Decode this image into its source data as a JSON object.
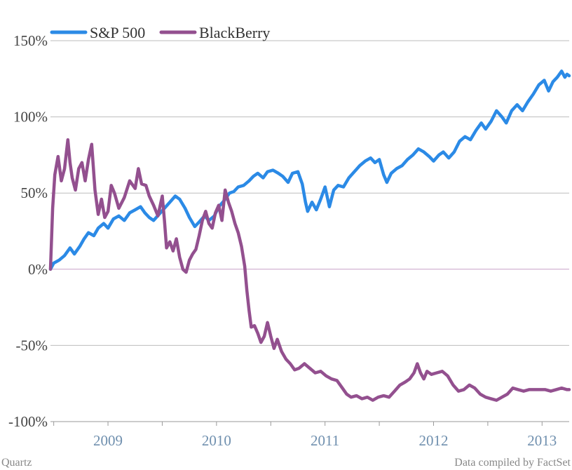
{
  "chart_data": {
    "type": "line",
    "y_unit": "%",
    "ylim": [
      -100,
      150
    ],
    "yticks": [
      {
        "value": 150,
        "label": "150%"
      },
      {
        "value": 100,
        "label": "100%"
      },
      {
        "value": 50,
        "label": "50%"
      },
      {
        "value": 0,
        "label": "0%"
      },
      {
        "value": -50,
        "label": "-50%"
      },
      {
        "value": -100,
        "label": "-100%"
      }
    ],
    "xlim": [
      2008.97,
      2013.75
    ],
    "xticks": [
      {
        "value": 2009.5,
        "label": "2009"
      },
      {
        "value": 2010.5,
        "label": "2010"
      },
      {
        "value": 2011.5,
        "label": "2011"
      },
      {
        "value": 2012.5,
        "label": "2012"
      },
      {
        "value": 2013.5,
        "label": "2013"
      }
    ],
    "x_minor_ticks": [
      2009.0,
      2009.5,
      2010.0,
      2010.5,
      2011.0,
      2011.5,
      2012.0,
      2012.5,
      2013.0,
      2013.5
    ],
    "grid": true,
    "legend_position": "top-left",
    "series": [
      {
        "name": "S&P 500",
        "color": "#2b8ae6",
        "points": [
          [
            2008.97,
            0
          ],
          [
            2009.0,
            4
          ],
          [
            2009.05,
            6
          ],
          [
            2009.1,
            9
          ],
          [
            2009.15,
            14
          ],
          [
            2009.19,
            10
          ],
          [
            2009.24,
            15
          ],
          [
            2009.28,
            20
          ],
          [
            2009.32,
            24
          ],
          [
            2009.37,
            22
          ],
          [
            2009.41,
            27
          ],
          [
            2009.46,
            30
          ],
          [
            2009.5,
            27
          ],
          [
            2009.55,
            33
          ],
          [
            2009.6,
            35
          ],
          [
            2009.65,
            32
          ],
          [
            2009.7,
            37
          ],
          [
            2009.75,
            39
          ],
          [
            2009.8,
            41
          ],
          [
            2009.84,
            37
          ],
          [
            2009.88,
            34
          ],
          [
            2009.92,
            32
          ],
          [
            2009.97,
            36
          ],
          [
            2010.02,
            40
          ],
          [
            2010.07,
            44
          ],
          [
            2010.12,
            48
          ],
          [
            2010.16,
            46
          ],
          [
            2010.21,
            40
          ],
          [
            2010.25,
            34
          ],
          [
            2010.3,
            28
          ],
          [
            2010.34,
            31
          ],
          [
            2010.39,
            35
          ],
          [
            2010.43,
            32
          ],
          [
            2010.48,
            35
          ],
          [
            2010.52,
            41
          ],
          [
            2010.57,
            45
          ],
          [
            2010.62,
            50
          ],
          [
            2010.66,
            51
          ],
          [
            2010.7,
            54
          ],
          [
            2010.75,
            55
          ],
          [
            2010.8,
            58
          ],
          [
            2010.84,
            61
          ],
          [
            2010.88,
            63
          ],
          [
            2010.93,
            60
          ],
          [
            2010.97,
            64
          ],
          [
            2011.02,
            65
          ],
          [
            2011.07,
            63
          ],
          [
            2011.11,
            61
          ],
          [
            2011.16,
            57
          ],
          [
            2011.2,
            63
          ],
          [
            2011.25,
            64
          ],
          [
            2011.29,
            56
          ],
          [
            2011.32,
            44
          ],
          [
            2011.34,
            38
          ],
          [
            2011.38,
            44
          ],
          [
            2011.42,
            39
          ],
          [
            2011.46,
            46
          ],
          [
            2011.5,
            54
          ],
          [
            2011.54,
            41
          ],
          [
            2011.58,
            52
          ],
          [
            2011.62,
            55
          ],
          [
            2011.67,
            54
          ],
          [
            2011.72,
            60
          ],
          [
            2011.77,
            64
          ],
          [
            2011.82,
            68
          ],
          [
            2011.87,
            71
          ],
          [
            2011.92,
            73
          ],
          [
            2011.96,
            70
          ],
          [
            2012.0,
            72
          ],
          [
            2012.04,
            62
          ],
          [
            2012.07,
            57
          ],
          [
            2012.11,
            63
          ],
          [
            2012.16,
            66
          ],
          [
            2012.21,
            68
          ],
          [
            2012.26,
            72
          ],
          [
            2012.31,
            75
          ],
          [
            2012.36,
            79
          ],
          [
            2012.41,
            77
          ],
          [
            2012.46,
            74
          ],
          [
            2012.5,
            71
          ],
          [
            2012.55,
            75
          ],
          [
            2012.59,
            77
          ],
          [
            2012.64,
            73
          ],
          [
            2012.69,
            77
          ],
          [
            2012.74,
            84
          ],
          [
            2012.79,
            87
          ],
          [
            2012.84,
            85
          ],
          [
            2012.89,
            91
          ],
          [
            2012.94,
            96
          ],
          [
            2012.98,
            92
          ],
          [
            2013.03,
            97
          ],
          [
            2013.08,
            104
          ],
          [
            2013.13,
            100
          ],
          [
            2013.17,
            96
          ],
          [
            2013.22,
            104
          ],
          [
            2013.27,
            108
          ],
          [
            2013.32,
            104
          ],
          [
            2013.37,
            110
          ],
          [
            2013.42,
            115
          ],
          [
            2013.47,
            121
          ],
          [
            2013.52,
            124
          ],
          [
            2013.56,
            117
          ],
          [
            2013.6,
            123
          ],
          [
            2013.64,
            126
          ],
          [
            2013.68,
            130
          ],
          [
            2013.71,
            126
          ],
          [
            2013.73,
            128
          ],
          [
            2013.75,
            127
          ]
        ]
      },
      {
        "name": "BlackBerry",
        "color": "#93508f",
        "points": [
          [
            2008.97,
            0
          ],
          [
            2008.99,
            40
          ],
          [
            2009.01,
            62
          ],
          [
            2009.04,
            74
          ],
          [
            2009.07,
            58
          ],
          [
            2009.1,
            66
          ],
          [
            2009.13,
            85
          ],
          [
            2009.15,
            70
          ],
          [
            2009.17,
            60
          ],
          [
            2009.2,
            52
          ],
          [
            2009.23,
            66
          ],
          [
            2009.26,
            70
          ],
          [
            2009.29,
            58
          ],
          [
            2009.32,
            72
          ],
          [
            2009.35,
            82
          ],
          [
            2009.38,
            52
          ],
          [
            2009.41,
            36
          ],
          [
            2009.44,
            46
          ],
          [
            2009.47,
            34
          ],
          [
            2009.5,
            38
          ],
          [
            2009.53,
            55
          ],
          [
            2009.56,
            50
          ],
          [
            2009.6,
            40
          ],
          [
            2009.65,
            47
          ],
          [
            2009.7,
            58
          ],
          [
            2009.75,
            53
          ],
          [
            2009.78,
            66
          ],
          [
            2009.81,
            56
          ],
          [
            2009.85,
            55
          ],
          [
            2009.88,
            48
          ],
          [
            2009.92,
            42
          ],
          [
            2009.96,
            35
          ],
          [
            2010.0,
            48
          ],
          [
            2010.02,
            32
          ],
          [
            2010.04,
            14
          ],
          [
            2010.07,
            18
          ],
          [
            2010.1,
            12
          ],
          [
            2010.13,
            20
          ],
          [
            2010.16,
            8
          ],
          [
            2010.19,
            0
          ],
          [
            2010.22,
            -2
          ],
          [
            2010.25,
            6
          ],
          [
            2010.28,
            10
          ],
          [
            2010.31,
            13
          ],
          [
            2010.34,
            22
          ],
          [
            2010.37,
            32
          ],
          [
            2010.4,
            38
          ],
          [
            2010.43,
            30
          ],
          [
            2010.46,
            27
          ],
          [
            2010.49,
            37
          ],
          [
            2010.52,
            42
          ],
          [
            2010.55,
            32
          ],
          [
            2010.58,
            52
          ],
          [
            2010.61,
            44
          ],
          [
            2010.64,
            38
          ],
          [
            2010.67,
            30
          ],
          [
            2010.7,
            24
          ],
          [
            2010.73,
            15
          ],
          [
            2010.76,
            2
          ],
          [
            2010.78,
            -14
          ],
          [
            2010.8,
            -27
          ],
          [
            2010.82,
            -38
          ],
          [
            2010.85,
            -37
          ],
          [
            2010.88,
            -42
          ],
          [
            2010.91,
            -48
          ],
          [
            2010.94,
            -44
          ],
          [
            2010.97,
            -35
          ],
          [
            2011.0,
            -44
          ],
          [
            2011.03,
            -52
          ],
          [
            2011.06,
            -46
          ],
          [
            2011.1,
            -54
          ],
          [
            2011.14,
            -59
          ],
          [
            2011.18,
            -62
          ],
          [
            2011.22,
            -66
          ],
          [
            2011.26,
            -65
          ],
          [
            2011.31,
            -62
          ],
          [
            2011.36,
            -65
          ],
          [
            2011.41,
            -68
          ],
          [
            2011.46,
            -67
          ],
          [
            2011.51,
            -70
          ],
          [
            2011.56,
            -72
          ],
          [
            2011.61,
            -73
          ],
          [
            2011.66,
            -78
          ],
          [
            2011.7,
            -82
          ],
          [
            2011.74,
            -84
          ],
          [
            2011.79,
            -83
          ],
          [
            2011.84,
            -85
          ],
          [
            2011.89,
            -84
          ],
          [
            2011.94,
            -86
          ],
          [
            2011.99,
            -84
          ],
          [
            2012.04,
            -83
          ],
          [
            2012.09,
            -84
          ],
          [
            2012.14,
            -80
          ],
          [
            2012.19,
            -76
          ],
          [
            2012.24,
            -74
          ],
          [
            2012.28,
            -72
          ],
          [
            2012.32,
            -68
          ],
          [
            2012.35,
            -62
          ],
          [
            2012.38,
            -68
          ],
          [
            2012.41,
            -72
          ],
          [
            2012.44,
            -67
          ],
          [
            2012.48,
            -69
          ],
          [
            2012.53,
            -68
          ],
          [
            2012.58,
            -67
          ],
          [
            2012.63,
            -70
          ],
          [
            2012.68,
            -76
          ],
          [
            2012.73,
            -80
          ],
          [
            2012.78,
            -79
          ],
          [
            2012.83,
            -76
          ],
          [
            2012.88,
            -78
          ],
          [
            2012.93,
            -82
          ],
          [
            2012.98,
            -84
          ],
          [
            2013.03,
            -85
          ],
          [
            2013.08,
            -86
          ],
          [
            2013.13,
            -84
          ],
          [
            2013.18,
            -82
          ],
          [
            2013.23,
            -78
          ],
          [
            2013.28,
            -79
          ],
          [
            2013.33,
            -80
          ],
          [
            2013.38,
            -79
          ],
          [
            2013.43,
            -79
          ],
          [
            2013.48,
            -79
          ],
          [
            2013.53,
            -79
          ],
          [
            2013.58,
            -80
          ],
          [
            2013.63,
            -79
          ],
          [
            2013.68,
            -78
          ],
          [
            2013.73,
            -79
          ],
          [
            2013.75,
            -79
          ]
        ]
      }
    ]
  },
  "footer": {
    "source_left": "Quartz",
    "source_right": "Data compiled by FactSet"
  }
}
